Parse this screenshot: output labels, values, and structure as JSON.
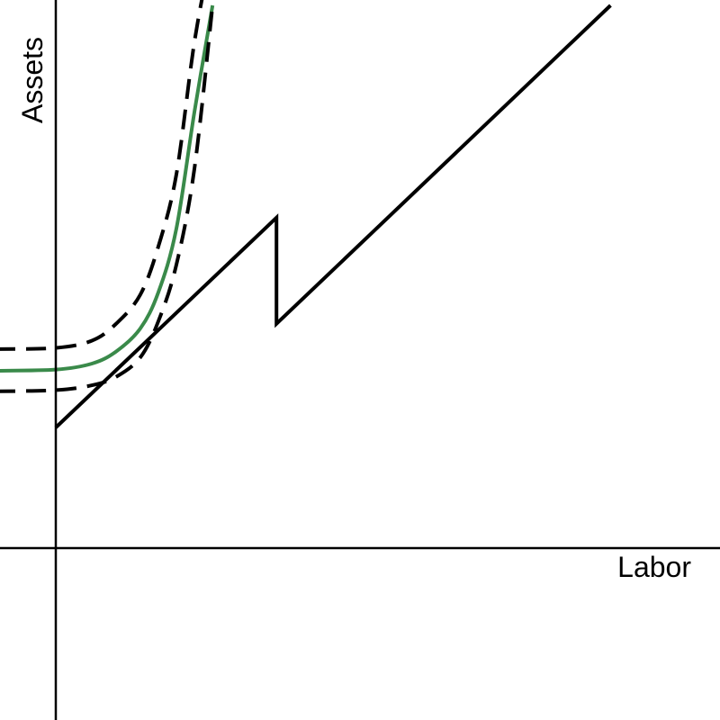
{
  "chart_data": {
    "type": "line",
    "xlabel": "Labor",
    "ylabel": "Assets",
    "grid": false,
    "colors": {
      "axis": "#000000",
      "budget": "#000000",
      "indifference": "#3a8a4a",
      "band": "#000000"
    },
    "series": [
      {
        "style": "solid",
        "color": "#000000",
        "points": [
          [
            0,
            1.0
          ],
          [
            1.83,
            2.74
          ],
          [
            1.83,
            1.86
          ],
          [
            4.6,
            4.5
          ]
        ]
      },
      {
        "style": "solid",
        "color": "#3a8a4a",
        "points": [
          [
            -0.5,
            1.47
          ],
          [
            0.0,
            1.48
          ],
          [
            0.3,
            1.53
          ],
          [
            0.5,
            1.63
          ],
          [
            0.7,
            1.82
          ],
          [
            0.85,
            2.12
          ],
          [
            1.0,
            2.65
          ],
          [
            1.15,
            3.62
          ],
          [
            1.3,
            4.5
          ]
        ]
      },
      {
        "style": "dashed",
        "color": "#000000",
        "points": [
          [
            -0.5,
            1.65
          ],
          [
            0.0,
            1.66
          ],
          [
            0.3,
            1.72
          ],
          [
            0.5,
            1.86
          ],
          [
            0.7,
            2.1
          ],
          [
            0.85,
            2.5
          ],
          [
            1.0,
            3.1
          ],
          [
            1.15,
            4.2
          ],
          [
            1.3,
            5.0
          ]
        ]
      },
      {
        "style": "dashed",
        "color": "#000000",
        "points": [
          [
            -0.5,
            1.3
          ],
          [
            0.0,
            1.31
          ],
          [
            0.3,
            1.35
          ],
          [
            0.5,
            1.42
          ],
          [
            0.7,
            1.58
          ],
          [
            0.85,
            1.88
          ],
          [
            1.0,
            2.35
          ],
          [
            1.15,
            3.15
          ],
          [
            1.3,
            4.5
          ]
        ]
      }
    ]
  }
}
